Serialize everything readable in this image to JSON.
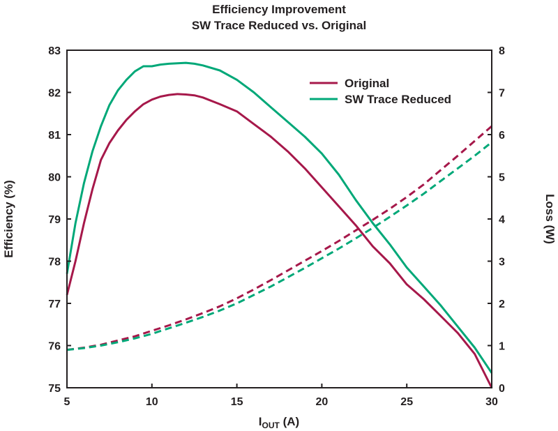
{
  "chart_data": {
    "type": "line",
    "title": "Efficiency Improvement",
    "subtitle": "SW Trace Reduced vs. Original",
    "xlabel_main": "I",
    "xlabel_sub": "OUT",
    "xlabel_unit": " (A)",
    "ylabel_left": "Efficiency (%)",
    "ylabel_right": "Loss (W)",
    "xlim": [
      5,
      30
    ],
    "ylim_left": [
      75,
      83
    ],
    "ylim_right": [
      0,
      8
    ],
    "xticks": [
      "5",
      "10",
      "15",
      "20",
      "25",
      "30"
    ],
    "yticks_left": [
      "75",
      "76",
      "77",
      "78",
      "79",
      "80",
      "81",
      "82",
      "83"
    ],
    "yticks_right": [
      "0",
      "1",
      "2",
      "3",
      "4",
      "5",
      "6",
      "7",
      "8"
    ],
    "grid": false,
    "legend_position": "top-right",
    "colors": {
      "original": "#a6184a",
      "reduced": "#00a878"
    },
    "legend": [
      {
        "label": "Original",
        "color": "#a6184a"
      },
      {
        "label": "SW Trace Reduced",
        "color": "#00a878"
      }
    ],
    "series": [
      {
        "name": "Original",
        "kind": "efficiency",
        "axis": "left",
        "dash": false,
        "color": "#a6184a",
        "x": [
          5,
          5.5,
          6,
          6.5,
          7,
          7.5,
          8,
          8.5,
          9,
          9.5,
          10,
          10.5,
          11,
          11.5,
          12,
          12.5,
          13,
          14,
          15,
          16,
          17,
          18,
          19,
          20,
          21,
          22,
          23,
          24,
          25,
          26,
          27,
          28,
          29,
          30
        ],
        "y": [
          77.2,
          78.0,
          78.9,
          79.7,
          80.4,
          80.8,
          81.1,
          81.35,
          81.55,
          81.72,
          81.83,
          81.9,
          81.94,
          81.96,
          81.95,
          81.93,
          81.88,
          81.72,
          81.55,
          81.25,
          80.95,
          80.6,
          80.2,
          79.75,
          79.3,
          78.85,
          78.35,
          77.95,
          77.45,
          77.1,
          76.7,
          76.3,
          75.8,
          75.0
        ]
      },
      {
        "name": "SW Trace Reduced",
        "kind": "efficiency",
        "axis": "left",
        "dash": false,
        "color": "#00a878",
        "x": [
          5,
          5.5,
          6,
          6.5,
          7,
          7.5,
          8,
          8.5,
          9,
          9.5,
          10,
          10.5,
          11,
          11.5,
          12,
          12.5,
          13,
          14,
          15,
          16,
          17,
          18,
          19,
          20,
          21,
          22,
          23,
          24,
          25,
          26,
          27,
          28,
          29,
          30
        ],
        "y": [
          77.7,
          78.9,
          79.85,
          80.6,
          81.2,
          81.7,
          82.05,
          82.3,
          82.5,
          82.62,
          82.62,
          82.66,
          82.68,
          82.69,
          82.7,
          82.68,
          82.64,
          82.52,
          82.3,
          82.0,
          81.65,
          81.3,
          80.95,
          80.55,
          80.05,
          79.45,
          78.9,
          78.4,
          77.85,
          77.4,
          76.95,
          76.45,
          75.95,
          75.35
        ]
      },
      {
        "name": "Original",
        "kind": "loss",
        "axis": "right",
        "dash": true,
        "color": "#a6184a",
        "x": [
          5,
          6,
          7,
          8,
          9,
          10,
          11,
          12,
          13,
          14,
          15,
          16,
          17,
          18,
          19,
          20,
          21,
          22,
          23,
          24,
          25,
          26,
          27,
          28,
          29,
          30
        ],
        "y": [
          0.9,
          0.95,
          1.02,
          1.12,
          1.22,
          1.35,
          1.48,
          1.62,
          1.77,
          1.93,
          2.12,
          2.33,
          2.55,
          2.78,
          3.01,
          3.24,
          3.48,
          3.73,
          3.98,
          4.24,
          4.52,
          4.82,
          5.16,
          5.5,
          5.85,
          6.2
        ]
      },
      {
        "name": "SW Trace Reduced",
        "kind": "loss",
        "axis": "right",
        "dash": true,
        "color": "#00a878",
        "x": [
          5,
          6,
          7,
          8,
          9,
          10,
          11,
          12,
          13,
          14,
          15,
          16,
          17,
          18,
          19,
          20,
          21,
          22,
          23,
          24,
          25,
          26,
          27,
          28,
          29,
          30
        ],
        "y": [
          0.9,
          0.94,
          1.0,
          1.08,
          1.17,
          1.28,
          1.41,
          1.54,
          1.68,
          1.83,
          2.0,
          2.2,
          2.4,
          2.62,
          2.84,
          3.07,
          3.3,
          3.54,
          3.79,
          4.05,
          4.32,
          4.6,
          4.9,
          5.2,
          5.5,
          5.82
        ]
      }
    ]
  }
}
